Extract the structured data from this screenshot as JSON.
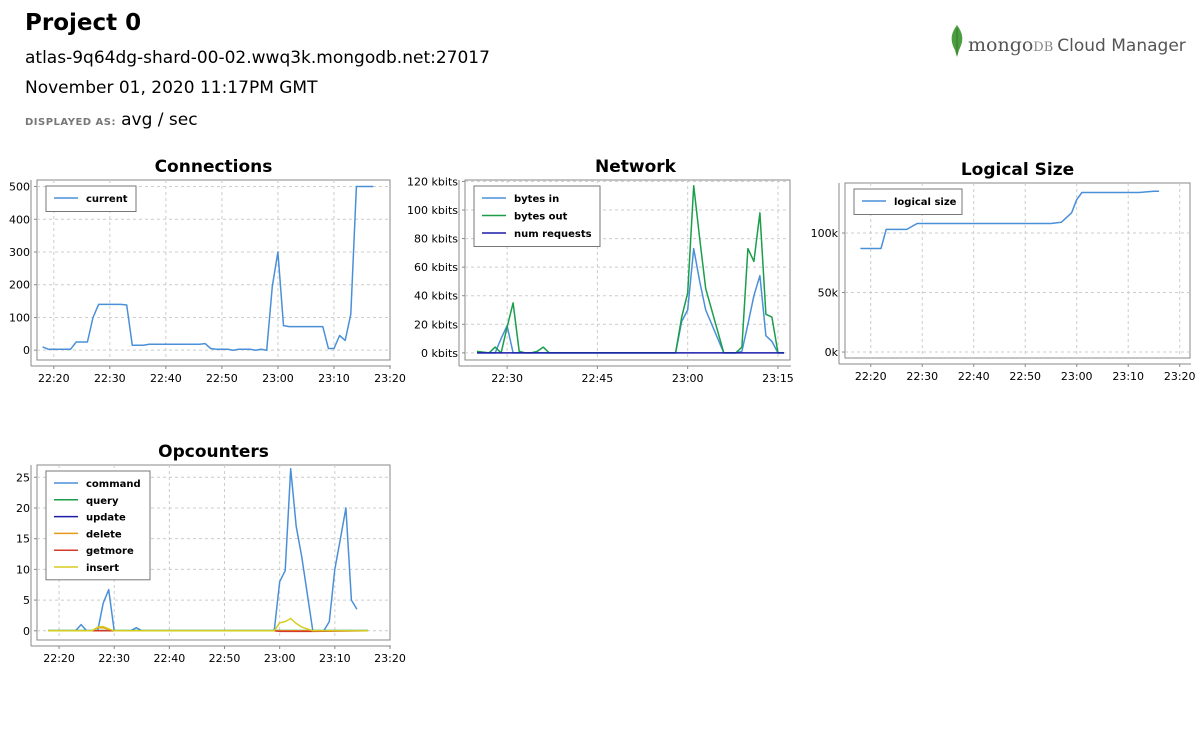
{
  "header": {
    "title": "Project 0",
    "host": "atlas-9q64dg-shard-00-02.wwq3k.mongodb.net:27017",
    "date": "November 01, 2020 11:17PM GMT",
    "displayed_as_label": "DISPLAYED AS:",
    "displayed_as_value": "avg / sec"
  },
  "logo": {
    "brand_main": "mongo",
    "brand_db": "DB",
    "product": "Cloud Manager",
    "leaf_color": "#4a9e3f"
  },
  "chart_data": [
    {
      "id": "connections",
      "type": "line",
      "title": "Connections",
      "xlim": [
        1337,
        1400
      ],
      "ylim": [
        -30,
        520
      ],
      "xticks": [
        1340,
        1350,
        1360,
        1370,
        1380,
        1390,
        1400
      ],
      "xtick_labels": [
        "22:20",
        "22:30",
        "22:40",
        "22:50",
        "23:00",
        "23:10",
        "23:20"
      ],
      "yticks": [
        0,
        100,
        200,
        300,
        400,
        500
      ],
      "ytick_labels": [
        "0",
        "100",
        "200",
        "300",
        "400",
        "500"
      ],
      "grid": true,
      "legend": "top-left",
      "series": [
        {
          "name": "current",
          "color": "#4a90d9",
          "x": [
            1338,
            1339,
            1340,
            1341,
            1342,
            1343,
            1344,
            1345,
            1346,
            1347,
            1348,
            1349,
            1350,
            1351,
            1352,
            1353,
            1354,
            1355,
            1356,
            1357,
            1358,
            1359,
            1360,
            1361,
            1362,
            1363,
            1364,
            1365,
            1366,
            1367,
            1368,
            1369,
            1370,
            1371,
            1372,
            1373,
            1374,
            1375,
            1376,
            1377,
            1378,
            1379,
            1380,
            1381,
            1382,
            1383,
            1384,
            1385,
            1386,
            1387,
            1388,
            1389,
            1390,
            1391,
            1392,
            1393,
            1394,
            1395,
            1396,
            1397
          ],
          "y": [
            10,
            3,
            3,
            3,
            3,
            3,
            25,
            25,
            25,
            100,
            140,
            140,
            140,
            140,
            140,
            138,
            15,
            15,
            15,
            18,
            18,
            18,
            18,
            18,
            18,
            18,
            18,
            18,
            18,
            20,
            5,
            3,
            3,
            3,
            0,
            3,
            3,
            3,
            0,
            3,
            0,
            195,
            300,
            75,
            72,
            72,
            72,
            72,
            72,
            72,
            72,
            5,
            5,
            45,
            30,
            110,
            500,
            500,
            500,
            500
          ]
        }
      ]
    },
    {
      "id": "network",
      "type": "line",
      "title": "Network",
      "xlim": [
        1343,
        1397
      ],
      "ylim": [
        -5,
        121
      ],
      "xticks": [
        1350,
        1365,
        1380,
        1395
      ],
      "xtick_labels": [
        "22:30",
        "22:45",
        "23:00",
        "23:15"
      ],
      "yticks": [
        0,
        20,
        40,
        60,
        80,
        100,
        120
      ],
      "ytick_labels": [
        "0 kbits",
        "20 kbits",
        "40 kbits",
        "60 kbits",
        "80 kbits",
        "100 kbits",
        "120 kbits"
      ],
      "grid": true,
      "legend": "top-left",
      "series": [
        {
          "name": "bytes in",
          "color": "#4a90d9",
          "x": [
            1345,
            1348,
            1349,
            1350,
            1351,
            1352,
            1354,
            1356,
            1378,
            1379,
            1380,
            1381,
            1382,
            1383,
            1386,
            1388,
            1389,
            1390,
            1391,
            1392,
            1393,
            1394,
            1395,
            1396
          ],
          "y": [
            0,
            0,
            10,
            19,
            0,
            0,
            0,
            0,
            0,
            22,
            30,
            73,
            50,
            30,
            0,
            0,
            1,
            20,
            40,
            54,
            12,
            8,
            0,
            0
          ]
        },
        {
          "name": "bytes out",
          "color": "#1a9e4a",
          "x": [
            1345,
            1347,
            1348,
            1349,
            1350,
            1351,
            1352,
            1353,
            1354,
            1355,
            1356,
            1357,
            1378,
            1379,
            1380,
            1381,
            1382,
            1383,
            1386,
            1388,
            1389,
            1390,
            1391,
            1392,
            1393,
            1394,
            1395,
            1396
          ],
          "y": [
            1,
            0,
            4,
            0,
            18,
            35,
            1,
            0,
            0,
            1,
            4,
            0,
            0,
            25,
            42,
            117,
            80,
            45,
            0,
            0,
            4,
            73,
            64,
            98,
            27,
            25,
            0,
            0
          ]
        },
        {
          "name": "num requests",
          "color": "#1c1caa",
          "x": [
            1345,
            1396
          ],
          "y": [
            0,
            0
          ]
        }
      ]
    },
    {
      "id": "logical-size",
      "type": "line",
      "title": "Logical Size",
      "xlim": [
        1335,
        1402
      ],
      "ylim": [
        -5000,
        142000
      ],
      "xticks": [
        1340,
        1350,
        1360,
        1370,
        1380,
        1390,
        1400
      ],
      "xtick_labels": [
        "22:20",
        "22:30",
        "22:40",
        "22:50",
        "23:00",
        "23:10",
        "23:20"
      ],
      "yticks": [
        0,
        50000,
        100000
      ],
      "ytick_labels": [
        "0k",
        "50k",
        "100k"
      ],
      "grid": true,
      "legend": "top-left",
      "series": [
        {
          "name": "logical size",
          "color": "#4a90d9",
          "x": [
            1338,
            1342,
            1343,
            1347,
            1349,
            1350,
            1375,
            1377,
            1379,
            1380,
            1381,
            1390,
            1392,
            1395,
            1396
          ],
          "y": [
            87000,
            87000,
            103000,
            103000,
            108000,
            108000,
            108000,
            109000,
            117000,
            128000,
            134000,
            134000,
            134000,
            135000,
            135000
          ]
        }
      ]
    },
    {
      "id": "opcounters",
      "type": "line",
      "title": "Opcounters",
      "xlim": [
        1336,
        1400
      ],
      "ylim": [
        -1.5,
        27
      ],
      "xticks": [
        1340,
        1350,
        1360,
        1370,
        1380,
        1390,
        1400
      ],
      "xtick_labels": [
        "22:20",
        "22:30",
        "22:40",
        "22:50",
        "23:00",
        "23:10",
        "23:20"
      ],
      "yticks": [
        0,
        5,
        10,
        15,
        20,
        25
      ],
      "ytick_labels": [
        "0",
        "5",
        "10",
        "15",
        "20",
        "25"
      ],
      "grid": true,
      "legend": "top-left",
      "series": [
        {
          "name": "command",
          "color": "#4a90d9",
          "x": [
            1338,
            1343,
            1344,
            1345,
            1347,
            1348,
            1349,
            1350,
            1352,
            1353,
            1354,
            1355,
            1379,
            1380,
            1381,
            1382,
            1383,
            1384,
            1386,
            1388,
            1389,
            1390,
            1391,
            1392,
            1393,
            1394
          ],
          "y": [
            0,
            0,
            1,
            0,
            0,
            4.5,
            6.7,
            0,
            0,
            0,
            0.5,
            0,
            0,
            8,
            9.8,
            26.4,
            17,
            12,
            0,
            0,
            1.5,
            10,
            15,
            20,
            5,
            3.5
          ]
        },
        {
          "name": "query",
          "color": "#1a9e4a",
          "x": [
            1338,
            1396
          ],
          "y": [
            0.05,
            0.05
          ]
        },
        {
          "name": "update",
          "color": "#1c1caa",
          "x": [
            1338,
            1396
          ],
          "y": [
            0,
            0
          ]
        },
        {
          "name": "delete",
          "color": "#e89a1c",
          "x": [
            1338,
            1346,
            1347,
            1348,
            1349,
            1350,
            1396
          ],
          "y": [
            0,
            0,
            0.5,
            0.5,
            0.2,
            0,
            0
          ]
        },
        {
          "name": "getmore",
          "color": "#d43a2a",
          "x": [
            1338,
            1379,
            1380,
            1386,
            1396
          ],
          "y": [
            0,
            0,
            -0.1,
            -0.1,
            0
          ]
        },
        {
          "name": "insert",
          "color": "#d6cc1e",
          "x": [
            1338,
            1346,
            1347,
            1348,
            1349,
            1350,
            1379,
            1380,
            1381,
            1382,
            1383,
            1384,
            1386,
            1396
          ],
          "y": [
            0,
            0,
            0.6,
            0.7,
            0.3,
            0,
            0,
            1.3,
            1.5,
            2,
            1.2,
            0.6,
            0,
            0
          ]
        }
      ]
    }
  ]
}
